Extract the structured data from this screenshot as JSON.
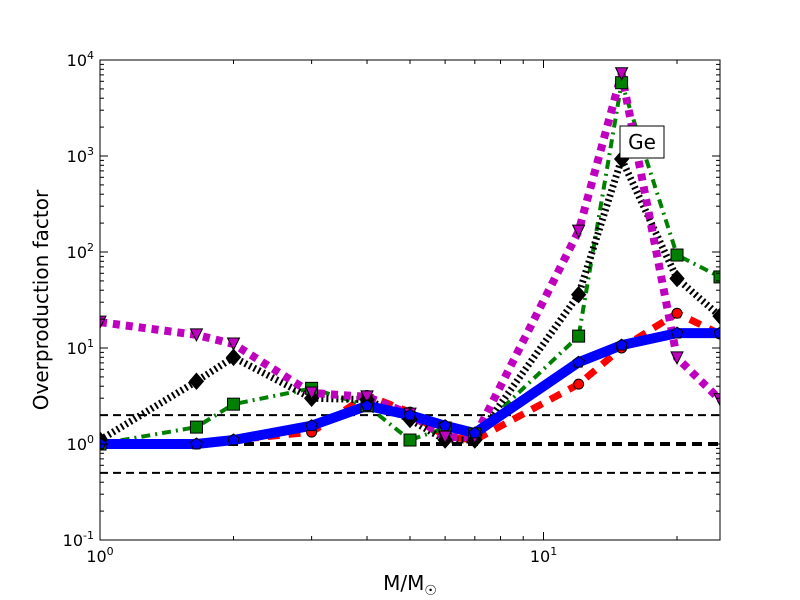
{
  "chart_data": {
    "type": "line",
    "title": "",
    "xlabel": "M/M",
    "xlabel_symbol": "☉",
    "ylabel": "Overproduction factor",
    "xscale": "log",
    "yscale": "log",
    "xlim": [
      1,
      25
    ],
    "ylim": [
      0.1,
      10000
    ],
    "x_ticks": [
      {
        "value": 1,
        "base": "10",
        "exp": "0"
      },
      {
        "value": 10,
        "base": "10",
        "exp": "1"
      }
    ],
    "y_ticks": [
      {
        "value": 0.1,
        "base": "10",
        "exp": "-1"
      },
      {
        "value": 1,
        "base": "10",
        "exp": "0"
      },
      {
        "value": 10,
        "base": "10",
        "exp": "1"
      },
      {
        "value": 100,
        "base": "10",
        "exp": "2"
      },
      {
        "value": 1000,
        "base": "10",
        "exp": "3"
      },
      {
        "value": 10000,
        "base": "10",
        "exp": "4"
      }
    ],
    "annotation": "Ge",
    "x": [
      1,
      1.65,
      2,
      3,
      4,
      5,
      6,
      7,
      12,
      15,
      20,
      25
    ],
    "series": [
      {
        "name": "red-dashed-circles",
        "color": "#ff0000",
        "marker": "circle",
        "dash": "12,9",
        "width": 7,
        "values": [
          1.0,
          1.0,
          1.1,
          1.33,
          3.2,
          2.15,
          1.2,
          1.1,
          4.2,
          10,
          23,
          14
        ]
      },
      {
        "name": "green-dashdot-squares",
        "color": "#008000",
        "marker": "square",
        "dash": "9,5,2,5",
        "width": 4,
        "values": [
          1.0,
          1.5,
          2.6,
          3.8,
          2.5,
          1.1,
          1.47,
          1.27,
          13.3,
          5800,
          93,
          55
        ]
      },
      {
        "name": "black-dotted-diamonds",
        "color": "#000000",
        "marker": "diamond",
        "dash": "2,3",
        "width": 7,
        "values": [
          1.1,
          4.5,
          8,
          3.0,
          2.9,
          1.8,
          1.1,
          1.1,
          36,
          930,
          53,
          21.5
        ]
      },
      {
        "name": "magenta-dotted-triangles",
        "color": "#bf00bf",
        "marker": "triangle-down",
        "dash": "7,6",
        "width": 8,
        "values": [
          18.6,
          13.7,
          11,
          3.4,
          3.1,
          2.05,
          1.18,
          1.18,
          165,
          7200,
          7.9,
          2.9
        ]
      },
      {
        "name": "blue-solid-pentagons",
        "color": "#0000ff",
        "marker": "pentagon",
        "dash": "",
        "width": 10,
        "values": [
          1.0,
          1.0,
          1.1,
          1.55,
          2.5,
          2.0,
          1.55,
          1.3,
          7.1,
          10.7,
          14.3,
          14.3
        ]
      }
    ],
    "reference_lines": [
      2,
      1,
      0.5
    ],
    "grid": false,
    "legend": "none"
  }
}
